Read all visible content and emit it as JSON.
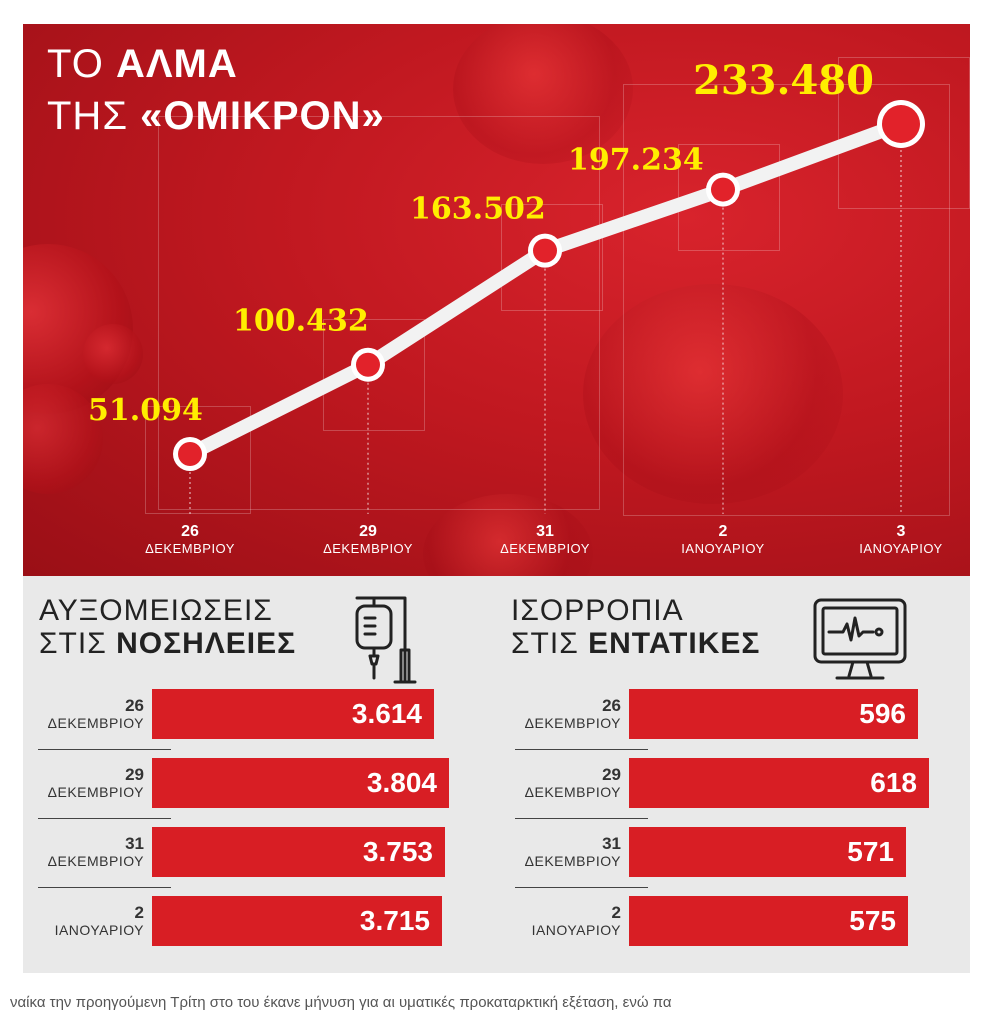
{
  "title": {
    "line1_light": "ΤΟ ",
    "line1_bold": "ΑΛΜΑ",
    "line2_light": "ΤΗΣ ",
    "line2_bold": "«ΟΜΙΚΡΟΝ»"
  },
  "colors": {
    "panel_red": "#c01820",
    "bar_red": "#d81e24",
    "value_yellow": "#ffee00",
    "grey_bg": "#e9e9e9"
  },
  "chart_data": [
    {
      "type": "line",
      "title": "ΤΟ ΑΛΜΑ ΤΗΣ «ΟΜΙΚΡΟΝ»",
      "x": [
        {
          "day": "26",
          "month": "ΔΕΚΕΜΒΡΙΟΥ"
        },
        {
          "day": "29",
          "month": "ΔΕΚΕΜΒΡΙΟΥ"
        },
        {
          "day": "31",
          "month": "ΔΕΚΕΜΒΡΙΟΥ"
        },
        {
          "day": "2",
          "month": "ΙΑΝΟΥΑΡΙΟΥ"
        },
        {
          "day": "3",
          "month": "ΙΑΝΟΥΑΡΙΟΥ"
        }
      ],
      "values": [
        51094,
        100432,
        163502,
        197234,
        233480
      ],
      "value_labels": [
        "51.094",
        "100.432",
        "163.502",
        "197.234",
        "233.480"
      ],
      "ylim": [
        0,
        260000
      ],
      "grid": false
    },
    {
      "type": "bar",
      "title_line1": "ΑΥΞΟΜΕΙΩΣΕΙΣ",
      "title_line2_light": "ΣΤΙΣ ",
      "title_line2_bold": "ΝΟΣΗΛΕΙΕΣ",
      "icon": "iv-drip-icon",
      "categories": [
        {
          "day": "26",
          "month": "ΔΕΚΕΜΒΡΙΟΥ"
        },
        {
          "day": "29",
          "month": "ΔΕΚΕΜΒΡΙΟΥ"
        },
        {
          "day": "31",
          "month": "ΔΕΚΕΜΒΡΙΟΥ"
        },
        {
          "day": "2",
          "month": "ΙΑΝΟΥΑΡΙΟΥ"
        }
      ],
      "values": [
        3614,
        3804,
        3753,
        3715
      ],
      "value_labels": [
        "3.614",
        "3.804",
        "3.753",
        "3.715"
      ]
    },
    {
      "type": "bar",
      "title_line1": "ΙΣΟΡΡΟΠΙΑ",
      "title_line2_light": "ΣΤΙΣ ",
      "title_line2_bold": "ΕΝΤΑΤΙΚΕΣ",
      "icon": "heart-monitor-icon",
      "categories": [
        {
          "day": "26",
          "month": "ΔΕΚΕΜΒΡΙΟΥ"
        },
        {
          "day": "29",
          "month": "ΔΕΚΕΜΒΡΙΟΥ"
        },
        {
          "day": "31",
          "month": "ΔΕΚΕΜΒΡΙΟΥ"
        },
        {
          "day": "2",
          "month": "ΙΑΝΟΥΑΡΙΟΥ"
        }
      ],
      "values": [
        596,
        618,
        571,
        575
      ],
      "value_labels": [
        "596",
        "618",
        "571",
        "575"
      ]
    }
  ],
  "footer_text": "ναίκα την προηγούμενη Τρίτη στο    του έκανε μήνυση για αι υματικές    προκαταρκτική εξέταση, ενώ πα"
}
